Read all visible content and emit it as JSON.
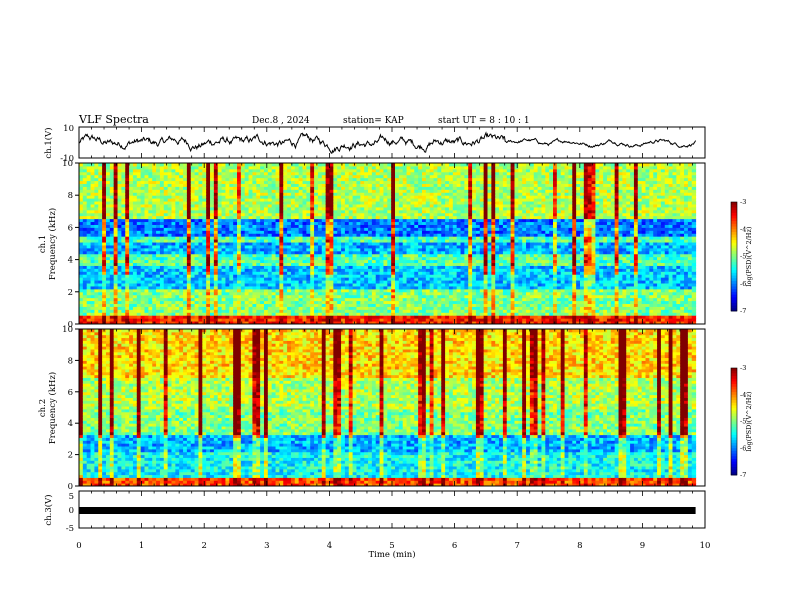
{
  "header": {
    "title": "VLF Spectra",
    "date": "Dec.8 , 2024",
    "station": "station= KAP",
    "start": "start UT =  8 : 10 : 1"
  },
  "chart_data": [
    {
      "type": "line",
      "name": "ch1-waveform",
      "ylabel": "ch.1(V)",
      "ylim": [
        -10,
        10
      ],
      "yticks": [
        "10",
        "-10"
      ],
      "xlim": [
        0,
        10
      ],
      "color": "#000000"
    },
    {
      "type": "heatmap",
      "name": "ch1-spectrogram",
      "ylabel": "ch.1\nFrequency (kHz)",
      "ylabel_line1": "ch.1",
      "ylabel_line2": "Frequency (kHz)",
      "ylim": [
        0,
        10
      ],
      "yticks": [
        "0",
        "2",
        "4",
        "6",
        "8",
        "10"
      ],
      "xlim": [
        0,
        9.85
      ],
      "colorbar": {
        "label": "log(PSD)(V^2/Hz)",
        "min": -7,
        "max": -3,
        "ticks": [
          "-3",
          "-4",
          "-5",
          "-6",
          "-7"
        ]
      }
    },
    {
      "type": "heatmap",
      "name": "ch2-spectrogram",
      "ylabel_line1": "ch.2",
      "ylabel_line2": "Frequency (kHz)",
      "ylim": [
        0,
        10
      ],
      "yticks": [
        "0",
        "2",
        "4",
        "6",
        "8",
        "10"
      ],
      "xlim": [
        0,
        9.85
      ],
      "colorbar": {
        "label": "log(PSD)(V^2/Hz)",
        "min": -7,
        "max": -3,
        "ticks": [
          "-3",
          "-4",
          "-5",
          "-6",
          "-7"
        ]
      }
    },
    {
      "type": "line",
      "name": "ch3-waveform",
      "ylabel": "ch.3(V)",
      "ylim": [
        -5,
        5
      ],
      "yticks": [
        "5",
        "0",
        "-5"
      ],
      "xlim": [
        0,
        9.85
      ],
      "value": -0.3,
      "color": "#000000"
    }
  ],
  "xaxis": {
    "label": "Time (min)",
    "range": [
      0,
      10
    ],
    "ticks": [
      "0",
      "1",
      "2",
      "3",
      "4",
      "5",
      "6",
      "7",
      "8",
      "9",
      "10"
    ]
  }
}
